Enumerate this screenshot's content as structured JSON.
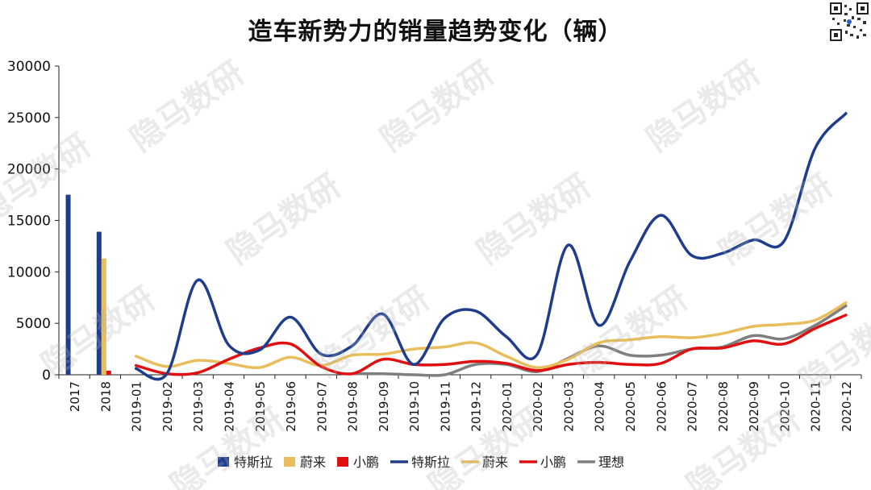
{
  "colors": {
    "tesla": "#1f3d8c",
    "nio": "#e8bd5c",
    "xpeng": "#e01010",
    "li": "#7f7f7f"
  },
  "watermark_text": "隐马数研",
  "chart_data": {
    "type": "bar+line",
    "title": "造车新势力的销量趋势变化（辆）",
    "categories": [
      "2017",
      "2018",
      "2019-01",
      "2019-02",
      "2019-03",
      "2019-04",
      "2019-05",
      "2019-06",
      "2019-07",
      "2019-08",
      "2019-09",
      "2019-10",
      "2019-11",
      "2019-12",
      "2020-01",
      "2020-02",
      "2020-03",
      "2020-04",
      "2020-05",
      "2020-06",
      "2020-07",
      "2020-08",
      "2020-09",
      "2020-10",
      "2020-11",
      "2020-12"
    ],
    "ylim": [
      0,
      30000
    ],
    "yticks": [
      "0",
      "5000",
      "10000",
      "15000",
      "20000",
      "25000",
      "30000"
    ],
    "legend_position": "bottom",
    "bar_series": [
      {
        "name": "特斯拉",
        "color_key": "tesla",
        "values": [
          17500,
          13900
        ]
      },
      {
        "name": "蔚来",
        "color_key": "nio",
        "values": [
          0,
          11300
        ]
      },
      {
        "name": "小鹏",
        "color_key": "xpeng",
        "values": [
          0,
          400
        ]
      }
    ],
    "line_series": [
      {
        "name": "特斯拉",
        "color_key": "tesla",
        "values": [
          null,
          null,
          600,
          100,
          9200,
          2900,
          2400,
          5600,
          2000,
          2800,
          5900,
          1000,
          5500,
          6200,
          3700,
          2000,
          12600,
          4800,
          11000,
          15500,
          11600,
          11800,
          13100,
          13000,
          22000,
          25400
        ]
      },
      {
        "name": "蔚来",
        "color_key": "nio",
        "values": [
          null,
          null,
          1800,
          800,
          1400,
          1100,
          700,
          1700,
          900,
          1900,
          2000,
          2500,
          2700,
          3100,
          1800,
          700,
          1500,
          3100,
          3400,
          3700,
          3600,
          4000,
          4700,
          4900,
          5300,
          7000
        ]
      },
      {
        "name": "小鹏",
        "color_key": "xpeng",
        "values": [
          null,
          null,
          900,
          100,
          200,
          1500,
          2600,
          3000,
          800,
          100,
          1500,
          1000,
          1000,
          1300,
          1100,
          400,
          1000,
          1200,
          1000,
          1100,
          2500,
          2600,
          3300,
          3000,
          4500,
          5800
        ]
      },
      {
        "name": "理想",
        "color_key": "li",
        "values": [
          null,
          null,
          null,
          null,
          null,
          null,
          null,
          null,
          null,
          100,
          100,
          0,
          0,
          1000,
          1000,
          300,
          1600,
          2800,
          1900,
          1900,
          2500,
          2700,
          3800,
          3500,
          4800,
          6700
        ]
      }
    ]
  }
}
